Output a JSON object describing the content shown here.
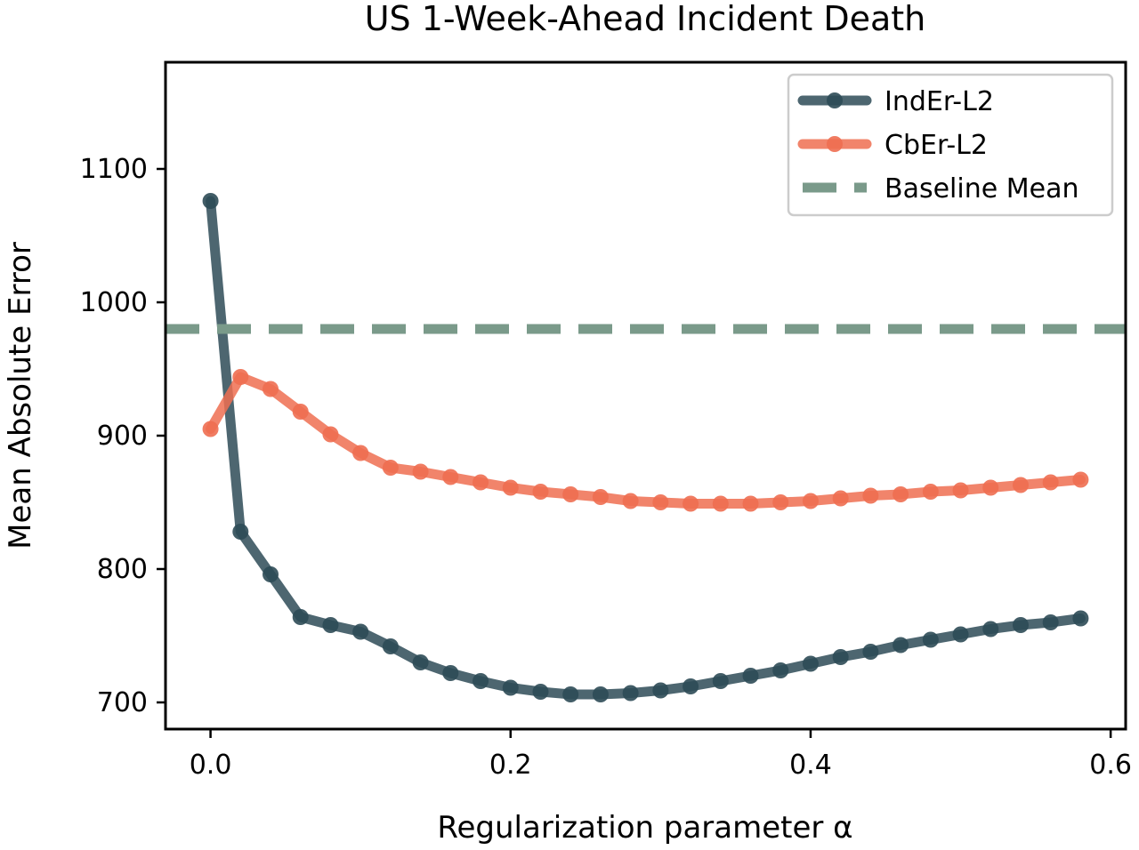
{
  "chart_data": {
    "type": "line",
    "title": "US 1-Week-Ahead Incident Death",
    "xlabel": "Regularization parameter α",
    "ylabel": "Mean Absolute Error",
    "xlim": [
      -0.03,
      0.61
    ],
    "ylim": [
      680,
      1180
    ],
    "xticks": [
      0.0,
      0.2,
      0.4,
      0.6
    ],
    "xtick_labels": [
      "0.0",
      "0.2",
      "0.4",
      "0.6"
    ],
    "yticks": [
      700,
      800,
      900,
      1000,
      1100
    ],
    "ytick_labels": [
      "700",
      "800",
      "900",
      "1000",
      "1100"
    ],
    "grid": false,
    "legend_position": "top-right",
    "x": [
      0.0,
      0.02,
      0.04,
      0.06,
      0.08,
      0.1,
      0.12,
      0.14,
      0.16,
      0.18,
      0.2,
      0.22,
      0.24,
      0.26,
      0.28,
      0.3,
      0.32,
      0.34,
      0.36,
      0.38,
      0.4,
      0.42,
      0.44,
      0.46,
      0.48,
      0.5,
      0.52,
      0.54,
      0.56,
      0.58
    ],
    "series": [
      {
        "name": "IndEr-L2",
        "color": "#2e4b57",
        "style": "line-marker",
        "values": [
          1076,
          828,
          796,
          764,
          758,
          753,
          742,
          730,
          722,
          716,
          711,
          708,
          706,
          706,
          707,
          709,
          712,
          716,
          720,
          724,
          729,
          734,
          738,
          743,
          747,
          751,
          755,
          758,
          760,
          763
        ]
      },
      {
        "name": "CbEr-L2",
        "color": "#ee6e51",
        "style": "line-marker",
        "values": [
          905,
          944,
          935,
          918,
          901,
          887,
          876,
          873,
          869,
          865,
          861,
          858,
          856,
          854,
          851,
          850,
          849,
          849,
          849,
          850,
          851,
          853,
          855,
          856,
          858,
          859,
          861,
          863,
          865,
          867
        ]
      },
      {
        "name": "Baseline Mean",
        "color": "#7a9a8a",
        "style": "dashed",
        "value": 980
      }
    ]
  }
}
